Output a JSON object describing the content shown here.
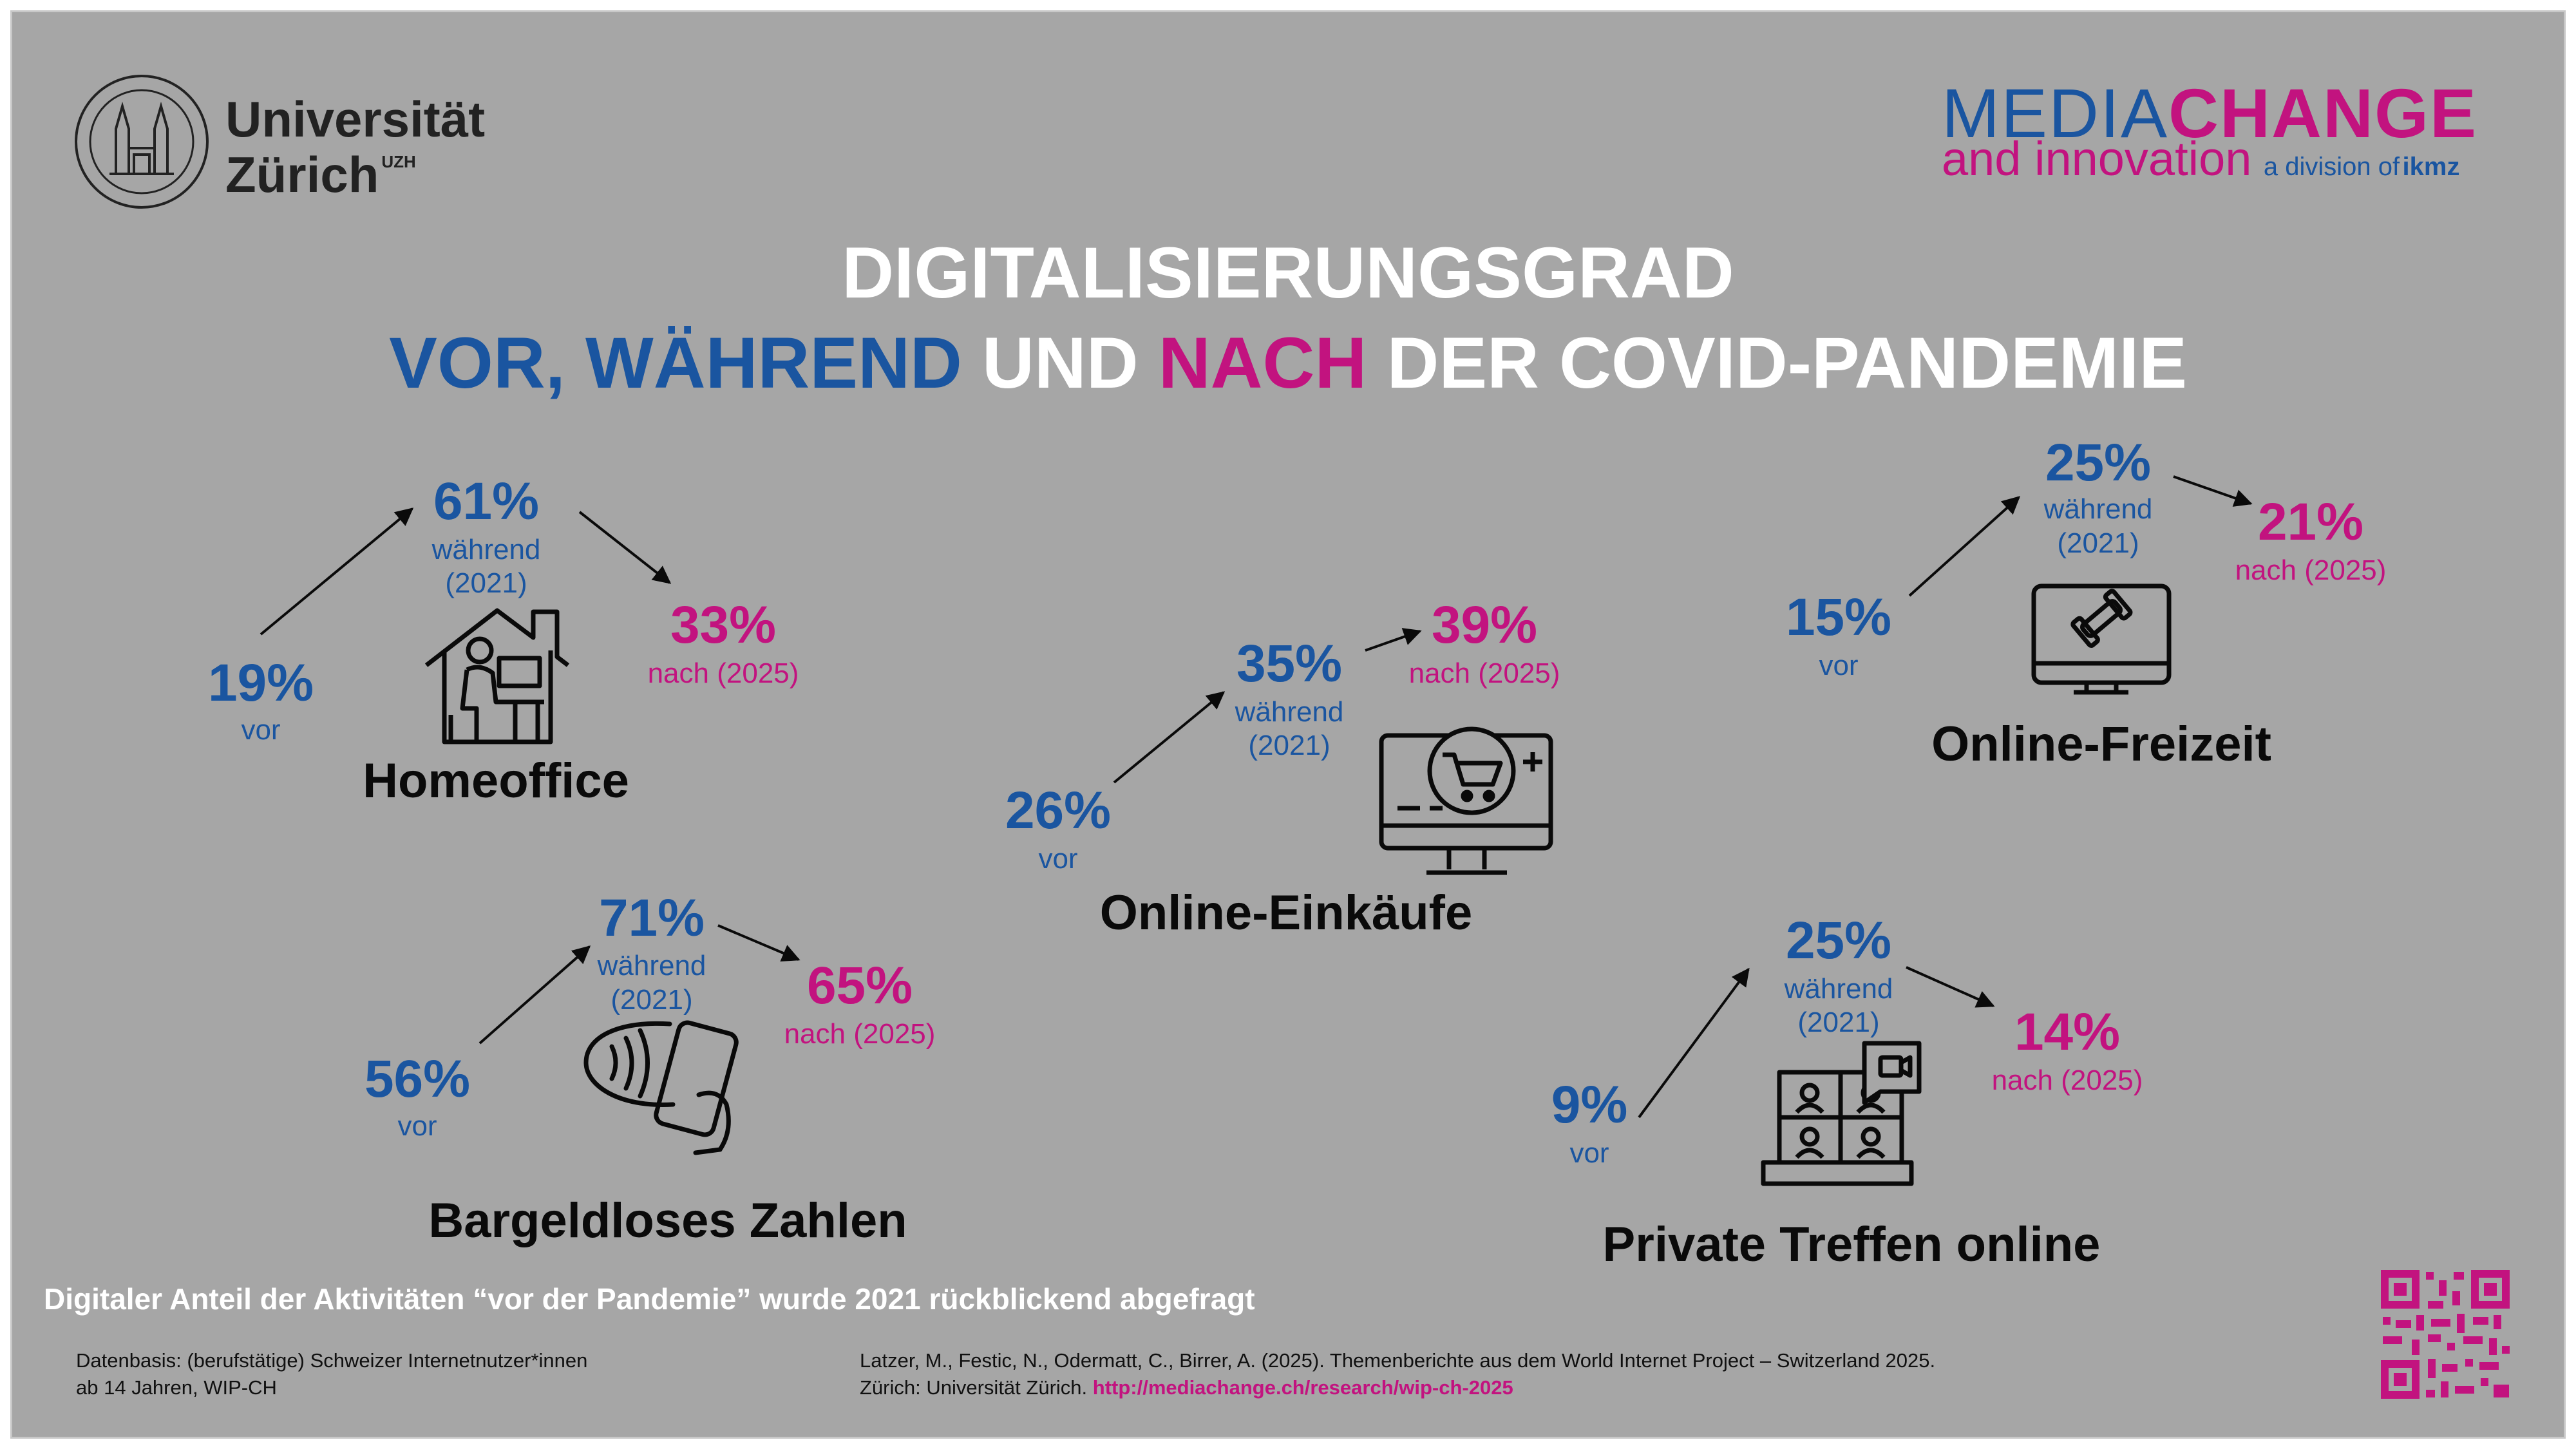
{
  "header": {
    "university_name_line1": "Universität",
    "university_name_line2": "Zürich",
    "university_abbr": "UZH",
    "brand_media": "MEDIA",
    "brand_change": "CHANGE",
    "brand_tagline": "and innovation",
    "brand_division": "a division of",
    "brand_ikmz": "ikmz"
  },
  "title": {
    "line1": "DIGITALISIERUNGSGRAD",
    "vor": "VOR,",
    "waehrend": "WÄHREND",
    "und": "UND",
    "nach": "NACH",
    "rest": "DER COVID-PANDEMIE"
  },
  "colors": {
    "before_during": "#1a55a0",
    "after": "#c2137f",
    "background": "#a6a6a6"
  },
  "categories": [
    {
      "name": "Homeoffice",
      "icon": "home-office-icon",
      "vor": "19%",
      "vor_label": "vor",
      "waehrend": "61%",
      "waehrend_label": "während",
      "waehrend_year": "(2021)",
      "nach": "33%",
      "nach_label": "nach (2025)"
    },
    {
      "name": "Bargeldloses Zahlen",
      "icon": "contactless-payment-icon",
      "vor": "56%",
      "vor_label": "vor",
      "waehrend": "71%",
      "waehrend_label": "während",
      "waehrend_year": "(2021)",
      "nach": "65%",
      "nach_label": "nach (2025)"
    },
    {
      "name": "Online-Einkäufe",
      "icon": "online-shopping-icon",
      "vor": "26%",
      "vor_label": "vor",
      "waehrend": "35%",
      "waehrend_label": "während",
      "waehrend_year": "(2021)",
      "nach": "39%",
      "nach_label": "nach (2025)"
    },
    {
      "name": "Online-Freizeit",
      "icon": "online-leisure-icon",
      "vor": "15%",
      "vor_label": "vor",
      "waehrend": "25%",
      "waehrend_label": "während",
      "waehrend_year": "(2021)",
      "nach": "21%",
      "nach_label": "nach (2025)"
    },
    {
      "name": "Private Treffen online",
      "icon": "video-meeting-icon",
      "vor": "9%",
      "vor_label": "vor",
      "waehrend": "25%",
      "waehrend_label": "während",
      "waehrend_year": "(2021)",
      "nach": "14%",
      "nach_label": "nach (2025)"
    }
  ],
  "footer": {
    "note": "Digitaler Anteil der Aktivitäten “vor der Pandemie” wurde 2021 rückblickend abgefragt",
    "data_basis_line1": "Datenbasis: (berufstätige) Schweizer Internetnutzer*innen",
    "data_basis_line2": "ab 14 Jahren, WIP-CH",
    "citation_line1": "Latzer, M., Festic, N., Odermatt, C., Birrer, A. (2025). Themenberichte aus dem World Internet Project – Switzerland 2025.",
    "citation_line2_prefix": "Zürich: Universität Zürich.",
    "citation_link": "http://mediachange.ch/research/wip-ch-2025",
    "qr_icon": "qr-code-icon"
  }
}
